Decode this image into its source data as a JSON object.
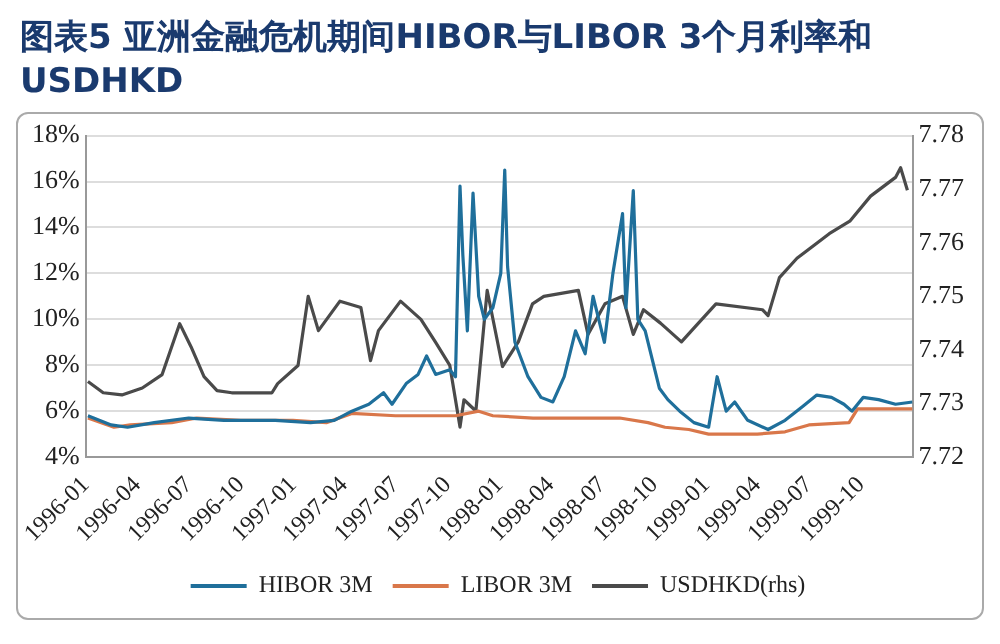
{
  "chart_data": {
    "type": "line",
    "title": "图表5 亚洲金融危机期间HIBOR与LIBOR 3个月利率和USDHKD",
    "xlim": [
      "1996-01-01",
      "1999-12-31"
    ],
    "xticks": [
      "1996-01",
      "1996-04",
      "1996-07",
      "1996-10",
      "1997-01",
      "1997-04",
      "1997-07",
      "1997-10",
      "1998-01",
      "1998-04",
      "1998-07",
      "1998-10",
      "1999-01",
      "1999-04",
      "1999-07",
      "1999-10"
    ],
    "ylim": [
      4,
      18
    ],
    "yticks": [
      {
        "value": 4,
        "label": "4%"
      },
      {
        "value": 6,
        "label": "6%"
      },
      {
        "value": 8,
        "label": "8%"
      },
      {
        "value": 10,
        "label": "10%"
      },
      {
        "value": 12,
        "label": "12%"
      },
      {
        "value": 14,
        "label": "14%"
      },
      {
        "value": 16,
        "label": "16%"
      },
      {
        "value": 18,
        "label": "18%"
      }
    ],
    "y2lim": [
      7.72,
      7.78
    ],
    "y2ticks": [
      7.72,
      7.73,
      7.74,
      7.75,
      7.76,
      7.77,
      7.78
    ],
    "grid": "y",
    "legend": "bottom",
    "marker": "none",
    "line_style": "solid",
    "series": [
      {
        "name": "HIBOR 3M",
        "color": "#1f6f9b",
        "x": [
          "1996-01-05",
          "1996-02-15",
          "1996-03-15",
          "1996-05-01",
          "1996-07-01",
          "1996-09-01",
          "1996-12-01",
          "1997-02-01",
          "1997-03-15",
          "1997-04-15",
          "1997-05-15",
          "1997-06-10",
          "1997-06-25",
          "1997-07-20",
          "1997-08-10",
          "1997-08-25",
          "1997-09-10",
          "1997-10-05",
          "1997-10-15",
          "1997-10-23",
          "1997-10-28",
          "1997-11-05",
          "1997-11-15",
          "1997-11-25",
          "1997-12-05",
          "1997-12-20",
          "1998-01-03",
          "1998-01-10",
          "1998-01-15",
          "1998-01-28",
          "1998-02-20",
          "1998-03-15",
          "1998-04-05",
          "1998-04-25",
          "1998-05-15",
          "1998-06-01",
          "1998-06-15",
          "1998-07-05",
          "1998-07-20",
          "1998-08-06",
          "1998-08-12",
          "1998-08-25",
          "1998-09-02",
          "1998-09-15",
          "1998-10-10",
          "1998-10-25",
          "1998-11-15",
          "1998-12-10",
          "1999-01-05",
          "1999-01-20",
          "1999-02-05",
          "1999-02-20",
          "1999-03-15",
          "1999-04-20",
          "1999-05-20",
          "1999-06-20",
          "1999-07-15",
          "1999-08-10",
          "1999-09-01",
          "1999-09-15",
          "1999-10-05",
          "1999-11-01",
          "1999-12-01",
          "1999-12-31"
        ],
        "values": [
          5.8,
          5.4,
          5.3,
          5.5,
          5.7,
          5.6,
          5.6,
          5.5,
          5.6,
          6.0,
          6.3,
          6.8,
          6.3,
          7.2,
          7.6,
          8.4,
          7.6,
          7.8,
          7.5,
          15.8,
          12.8,
          9.5,
          15.5,
          11.0,
          10.0,
          10.5,
          12.0,
          16.5,
          12.3,
          9.0,
          7.5,
          6.6,
          6.4,
          7.5,
          9.5,
          8.5,
          11.0,
          9.0,
          12.0,
          14.6,
          10.5,
          15.6,
          10.0,
          9.5,
          7.0,
          6.5,
          6.0,
          5.5,
          5.3,
          7.5,
          6.0,
          6.4,
          5.6,
          5.2,
          5.6,
          6.2,
          6.7,
          6.6,
          6.3,
          6.0,
          6.6,
          6.5,
          6.3,
          6.4
        ]
      },
      {
        "name": "LIBOR 3M",
        "color": "#d9774a",
        "x": [
          "1996-01-05",
          "1996-02-20",
          "1996-03-20",
          "1996-06-01",
          "1996-07-15",
          "1996-10-01",
          "1997-01-01",
          "1997-03-01",
          "1997-04-15",
          "1997-07-01",
          "1997-10-15",
          "1997-11-25",
          "1997-12-20",
          "1998-03-01",
          "1998-08-01",
          "1998-09-20",
          "1998-10-20",
          "1998-12-01",
          "1999-01-05",
          "1999-04-01",
          "1999-05-20",
          "1999-07-01",
          "1999-09-10",
          "1999-09-25",
          "1999-11-15",
          "1999-12-31"
        ],
        "values": [
          5.7,
          5.3,
          5.4,
          5.5,
          5.7,
          5.6,
          5.6,
          5.5,
          5.9,
          5.8,
          5.8,
          6.0,
          5.8,
          5.7,
          5.7,
          5.5,
          5.3,
          5.2,
          5.0,
          5.0,
          5.1,
          5.4,
          5.5,
          6.1,
          6.1,
          6.1
        ]
      },
      {
        "name": "USDHKD(rhs)",
        "color": "#4a4a4a",
        "axis": "y2",
        "x": [
          "1996-01-05",
          "1996-02-01",
          "1996-03-05",
          "1996-04-10",
          "1996-05-15",
          "1996-06-15",
          "1996-07-05",
          "1996-07-28",
          "1996-08-20",
          "1996-09-15",
          "1996-11-25",
          "1996-12-05",
          "1997-01-10",
          "1997-01-28",
          "1997-02-15",
          "1997-03-25",
          "1997-05-01",
          "1997-05-18",
          "1997-06-01",
          "1997-07-10",
          "1997-08-15",
          "1997-09-10",
          "1997-10-05",
          "1997-10-23",
          "1997-10-30",
          "1997-11-20",
          "1997-12-10",
          "1998-01-06",
          "1998-02-03",
          "1998-02-28",
          "1998-03-20",
          "1998-05-20",
          "1998-06-06",
          "1998-07-06",
          "1998-08-06",
          "1998-08-25",
          "1998-09-12",
          "1998-10-12",
          "1998-11-18",
          "1998-12-12",
          "1999-01-18",
          "1999-04-10",
          "1999-04-20",
          "1999-05-10",
          "1999-06-10",
          "1999-08-06",
          "1999-09-12",
          "1999-10-18",
          "1999-12-01",
          "1999-12-10",
          "1999-12-22"
        ],
        "values": [
          7.7341,
          7.732,
          7.7316,
          7.7329,
          7.7354,
          7.7449,
          7.7406,
          7.735,
          7.7324,
          7.732,
          7.732,
          7.7337,
          7.7371,
          7.75,
          7.7436,
          7.7491,
          7.7479,
          7.738,
          7.7436,
          7.7491,
          7.7457,
          7.7414,
          7.7371,
          7.7256,
          7.7307,
          7.7286,
          7.7511,
          7.7369,
          7.7415,
          7.7486,
          7.75,
          7.7511,
          7.7429,
          7.7486,
          7.75,
          7.7429,
          7.7475,
          7.745,
          7.7415,
          7.7443,
          7.7486,
          7.7475,
          7.7464,
          7.7535,
          7.7571,
          7.7617,
          7.7641,
          7.7687,
          7.7722,
          7.774,
          7.7698
        ]
      }
    ]
  }
}
